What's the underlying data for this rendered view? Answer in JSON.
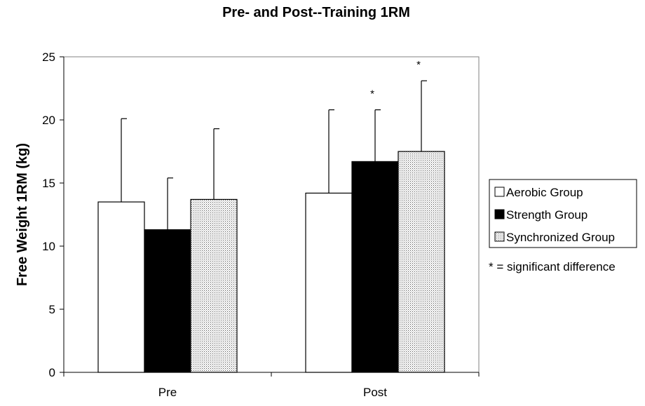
{
  "chart_data": {
    "type": "bar",
    "title": "Pre- and Post--Training 1RM",
    "xlabel": "",
    "ylabel": "Free Weight 1RM (kg)",
    "ylim": [
      0,
      25
    ],
    "yticks": [
      "0",
      "5",
      "10",
      "15",
      "20",
      "25"
    ],
    "categories": [
      "Pre",
      "Post"
    ],
    "series": [
      {
        "name": "Aerobic Group",
        "values": [
          13.5,
          14.2
        ],
        "error_upper": [
          20.1,
          20.8
        ],
        "fill": "white",
        "color": "#ffffff"
      },
      {
        "name": "Strength Group",
        "values": [
          11.3,
          16.7
        ],
        "error_upper": [
          15.4,
          20.8
        ],
        "fill": "solid",
        "color": "#000000"
      },
      {
        "name": "Synchronized Group",
        "values": [
          13.7,
          17.5
        ],
        "error_upper": [
          19.3,
          23.1
        ],
        "fill": "dotted",
        "color": "#e8e8e8"
      }
    ],
    "significance_marks": [
      {
        "category": "Post",
        "series": "Strength Group",
        "label": "*"
      },
      {
        "category": "Post",
        "series": "Synchronized Group",
        "label": "*"
      }
    ],
    "note": "* = significant difference",
    "legend_position": "right",
    "grid": false
  }
}
